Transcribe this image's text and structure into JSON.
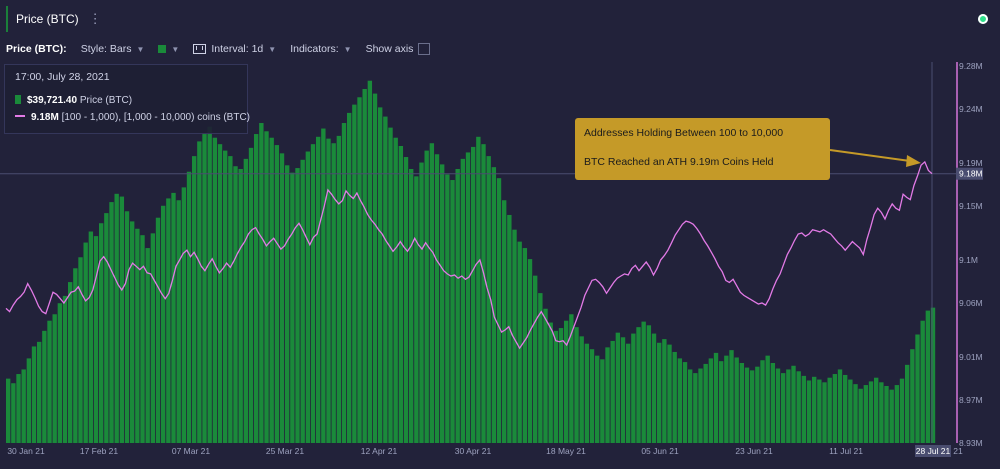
{
  "tab": {
    "label": "Price (BTC)",
    "menu_icon": "vertical-ellipsis-icon"
  },
  "status": {
    "icon": "online-status-dot",
    "color": "#2ee08a"
  },
  "toolbar": {
    "title": "Price (BTC):",
    "style_label": "Style: Bars",
    "color_swatch": "#1a8a3a",
    "interval_label": "Interval: 1d",
    "indicators_label": "Indicators:",
    "show_axis_label": "Show axis"
  },
  "tooltip": {
    "date": "17:00, July 28, 2021",
    "price_value": "$39,721.40",
    "price_label": "Price (BTC)",
    "supply_value": "9.18M",
    "supply_label": "[100 - 1,000), [1,000 - 10,000) coins (BTC)"
  },
  "annotation": {
    "line1": "Addresses Holding Between 100 to 10,000",
    "line2": "BTC Reached an ATH 9.19m Coins Held",
    "color": "#c59a28"
  },
  "colors": {
    "background": "#22223a",
    "bars": "#1a8a3a",
    "line": "#e27ae6",
    "annotation_arrow": "#c59a28"
  },
  "chart_data": {
    "type": "bar+line",
    "x_tick_labels": [
      "30 Jan 21",
      "17 Feb 21",
      "07 Mar 21",
      "25 Mar 21",
      "12 Apr 21",
      "30 Apr 21",
      "18 May 21",
      "05 Jun 21",
      "23 Jun 21",
      "11 Jul 21",
      "28 Jul 21",
      "21"
    ],
    "y_tick_labels": [
      "9.28M",
      "9.24M",
      "9.19M",
      "9.15M",
      "9.1M",
      "9.06M",
      "9.01M",
      "8.97M",
      "8.93M"
    ],
    "ylim": [
      8.93,
      9.28
    ],
    "current_value_label": "9.18M",
    "date_range": [
      "2021-01-27",
      "2021-07-28"
    ],
    "series": [
      {
        "name": "Price (BTC)",
        "kind": "bar",
        "unit": "USD",
        "values": [
          32000,
          31500,
          32500,
          33000,
          34200,
          35500,
          36000,
          37200,
          38300,
          39000,
          40200,
          41000,
          42500,
          44000,
          45200,
          46800,
          48000,
          47500,
          48900,
          50000,
          51200,
          52100,
          51800,
          50200,
          49100,
          48300,
          47600,
          46200,
          47800,
          49500,
          50800,
          51600,
          52200,
          51400,
          52800,
          54500,
          56200,
          57800,
          58600,
          59400,
          58200,
          57500,
          56800,
          56200,
          55100,
          54800,
          55900,
          57100,
          58600,
          59800,
          58900,
          58200,
          57400,
          56500,
          55200,
          54400,
          54900,
          55800,
          56700,
          57500,
          58300,
          59200,
          58100,
          57600,
          58400,
          59800,
          60900,
          61800,
          62600,
          63500,
          64400,
          63000,
          61500,
          60500,
          59300,
          58200,
          57300,
          56100,
          54800,
          54000,
          55500,
          56800,
          57600,
          56400,
          55300,
          54200,
          53600,
          54800,
          55900,
          56600,
          57200,
          58300,
          57500,
          56200,
          55000,
          53800,
          51400,
          49800,
          48200,
          46900,
          46200,
          45000,
          43200,
          41300,
          39600,
          38100,
          37200,
          37500,
          38300,
          39000,
          37600,
          36600,
          35800,
          35200,
          34500,
          34100,
          35400,
          36100,
          37000,
          36500,
          35800,
          36900,
          37600,
          38200,
          37800,
          36900,
          35900,
          36300,
          35700,
          34900,
          34200,
          33800,
          33000,
          32600,
          33100,
          33600,
          34200,
          34800,
          33900,
          34500,
          35100,
          34300,
          33700,
          33200,
          32900,
          33300,
          34000,
          34500,
          33700,
          33100,
          32600,
          33000,
          33400,
          32800,
          32300,
          31800,
          32200,
          31900,
          31600,
          32100,
          32500,
          33000,
          32400,
          31900,
          31400,
          30900,
          31300,
          31700,
          32100,
          31600,
          31200,
          30800,
          31300,
          32000,
          33500,
          35200,
          36800,
          38300,
          39400,
          39721.4
        ]
      },
      {
        "name": "9.18M [100 - 1,000), [1,000 - 10,000) coins (BTC)",
        "kind": "line",
        "unit": "M",
        "values": [
          9.055,
          9.052,
          9.058,
          9.063,
          9.066,
          9.07,
          9.078,
          9.072,
          9.065,
          9.057,
          9.052,
          9.05,
          9.06,
          9.07,
          9.068,
          9.064,
          9.06,
          9.065,
          9.07,
          9.071,
          9.075,
          9.068,
          9.062,
          9.065,
          9.072,
          9.085,
          9.099,
          9.103,
          9.098,
          9.091,
          9.084,
          9.077,
          9.072,
          9.078,
          9.091,
          9.097,
          9.094,
          9.091,
          9.094,
          9.088,
          9.087,
          9.081,
          9.075,
          9.069,
          9.064,
          9.069,
          9.081,
          9.094,
          9.1,
          9.106,
          9.109,
          9.103,
          9.107,
          9.101,
          9.094,
          9.09,
          9.096,
          9.101,
          9.094,
          9.088,
          9.092,
          9.097,
          9.093,
          9.099,
          9.106,
          9.112,
          9.117,
          9.124,
          9.128,
          9.13,
          9.124,
          9.119,
          9.113,
          9.117,
          9.12,
          9.115,
          9.11,
          9.113,
          9.119,
          9.124,
          9.13,
          9.134,
          9.128,
          9.121,
          9.114,
          9.121,
          9.124,
          9.137,
          9.15,
          9.165,
          9.161,
          9.156,
          9.152,
          9.155,
          9.164,
          9.16,
          9.157,
          9.162,
          9.155,
          9.149,
          9.142,
          9.137,
          9.133,
          9.128,
          9.124,
          9.118,
          9.113,
          9.108,
          9.112,
          9.117,
          9.112,
          9.108,
          9.113,
          9.12,
          9.114,
          9.11,
          9.116,
          9.111,
          9.107,
          9.1,
          9.095,
          9.09,
          9.087,
          9.085,
          9.086,
          9.083,
          9.085,
          9.082,
          9.084,
          9.09,
          9.096,
          9.1,
          9.088,
          9.074,
          9.063,
          9.047,
          9.04,
          9.033,
          9.035,
          9.038,
          9.03,
          9.024,
          9.018,
          9.023,
          9.028,
          9.035,
          9.041,
          9.047,
          9.052,
          9.046,
          9.04,
          9.034,
          9.025,
          9.024,
          9.025,
          9.021,
          9.029,
          9.038,
          9.047,
          9.056,
          9.067,
          9.074,
          9.081,
          9.082,
          9.079,
          9.075,
          9.069,
          9.074,
          9.079,
          9.083,
          9.085,
          9.087,
          9.086,
          9.092,
          9.095,
          9.09,
          9.094,
          9.098,
          9.093,
          9.086,
          9.092,
          9.1,
          9.104,
          9.109,
          9.116,
          9.123,
          9.128,
          9.133,
          9.136,
          9.135,
          9.133,
          9.129,
          9.124,
          9.118,
          9.113,
          9.107,
          9.101,
          9.094,
          9.089,
          9.081,
          9.079,
          9.082,
          9.076,
          9.07,
          9.067,
          9.065,
          9.063,
          9.061,
          9.059,
          9.06,
          9.058,
          9.064,
          9.073,
          9.081,
          9.087,
          9.096,
          9.105,
          9.111,
          9.118,
          9.124,
          9.125,
          9.122,
          9.124,
          9.128,
          9.127,
          9.126,
          9.128,
          9.126,
          9.124,
          9.12,
          9.116,
          9.113,
          9.109,
          9.113,
          9.117,
          9.114,
          9.111,
          9.105,
          9.119,
          9.13,
          9.142,
          9.148,
          9.144,
          9.138,
          9.146,
          9.152,
          9.148,
          9.146,
          9.161,
          9.158,
          9.156,
          9.169,
          9.178,
          9.188,
          9.191,
          9.183,
          9.18
        ]
      }
    ]
  }
}
